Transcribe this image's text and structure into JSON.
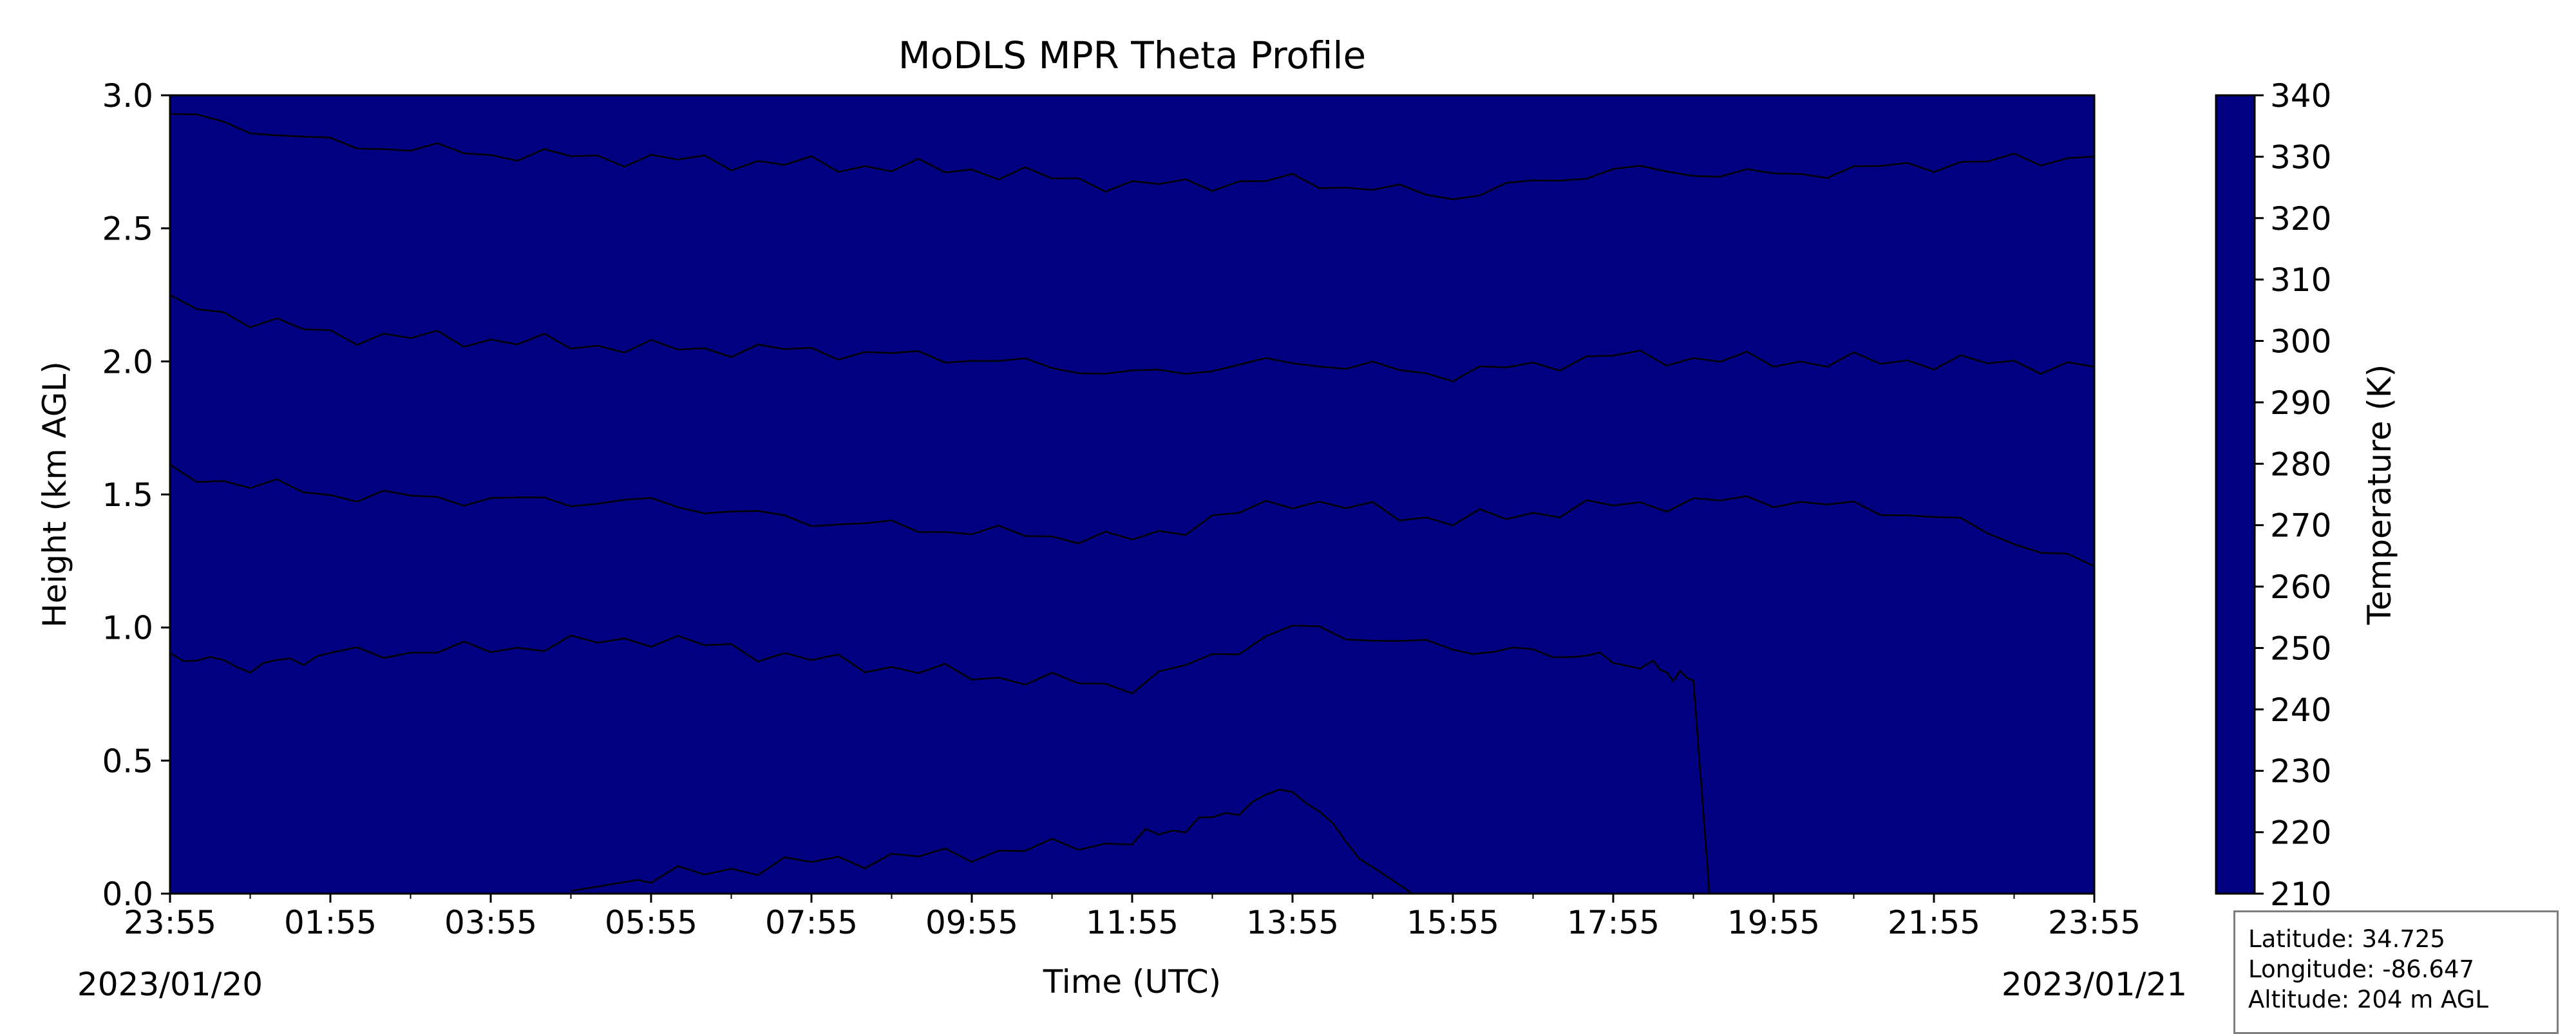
{
  "chart_data": {
    "type": "heatmap",
    "title": "MoDLS MPR Theta Profile",
    "xlabel": "Time (UTC)",
    "ylabel": "Height (km AGL)",
    "x_tick_labels": [
      "23:55",
      "01:55",
      "03:55",
      "05:55",
      "07:55",
      "09:55",
      "11:55",
      "13:55",
      "15:55",
      "17:55",
      "19:55",
      "21:55",
      "23:55"
    ],
    "x_range_hours": [
      0,
      24
    ],
    "start_date_label": "2023/01/20",
    "end_date_label": "2023/01/21",
    "ylim": [
      0.0,
      3.0
    ],
    "y_ticks": [
      0.0,
      0.5,
      1.0,
      1.5,
      2.0,
      2.5,
      3.0
    ],
    "y_tick_labels": [
      "0.0",
      "0.5",
      "1.0",
      "1.5",
      "2.0",
      "2.5",
      "3.0"
    ],
    "colorbar": {
      "label": "Temperature (K)",
      "range": [
        210,
        340
      ],
      "ticks": [
        210,
        220,
        230,
        240,
        250,
        260,
        270,
        280,
        290,
        300,
        310,
        320,
        330,
        340
      ],
      "tick_labels": [
        "210",
        "220",
        "230",
        "240",
        "250",
        "260",
        "270",
        "280",
        "290",
        "300",
        "310",
        "320",
        "330",
        "340"
      ],
      "colormap": "jet",
      "level_step": 5
    },
    "contour_levels": [
      275,
      285,
      290,
      295,
      300
    ],
    "contours": [
      {
        "level": 300,
        "x": [
          0,
          2,
          4,
          6,
          8,
          10,
          12,
          14,
          16,
          18,
          20,
          22,
          24
        ],
        "y": [
          2.93,
          2.82,
          2.78,
          2.76,
          2.74,
          2.72,
          2.66,
          2.68,
          2.62,
          2.72,
          2.7,
          2.74,
          2.77
        ]
      },
      {
        "level": 295,
        "x": [
          0,
          2,
          4,
          6,
          8,
          10,
          12,
          14,
          16,
          18,
          20,
          22,
          24
        ],
        "y": [
          2.22,
          2.1,
          2.08,
          2.05,
          2.04,
          2.01,
          1.95,
          2.0,
          1.95,
          2.02,
          2.0,
          2.0,
          1.98
        ]
      },
      {
        "level": 290,
        "x": [
          0,
          2,
          4,
          6,
          8,
          10,
          12,
          14,
          16,
          18,
          20,
          22,
          24
        ],
        "y": [
          1.58,
          1.5,
          1.48,
          1.47,
          1.4,
          1.36,
          1.33,
          1.48,
          1.4,
          1.46,
          1.48,
          1.42,
          1.23
        ]
      },
      {
        "level": 285,
        "x": [
          0,
          1,
          2,
          4,
          6,
          8,
          10,
          12,
          14,
          16,
          17.5,
          18.5,
          19,
          19.2
        ],
        "y": [
          0.9,
          0.85,
          0.9,
          0.92,
          0.96,
          0.88,
          0.82,
          0.78,
          1.0,
          0.92,
          0.9,
          0.85,
          0.8,
          0.0
        ]
      },
      {
        "level": 275,
        "x": [
          5,
          6,
          8,
          10,
          12,
          13,
          14,
          15,
          15.5
        ],
        "y": [
          0.01,
          0.06,
          0.12,
          0.15,
          0.2,
          0.28,
          0.4,
          0.1,
          0.0
        ]
      }
    ]
  },
  "info_box": {
    "latitude": "Latitude: 34.725",
    "longitude": "Longitude: -86.647",
    "altitude": "Altitude: 204 m AGL"
  }
}
